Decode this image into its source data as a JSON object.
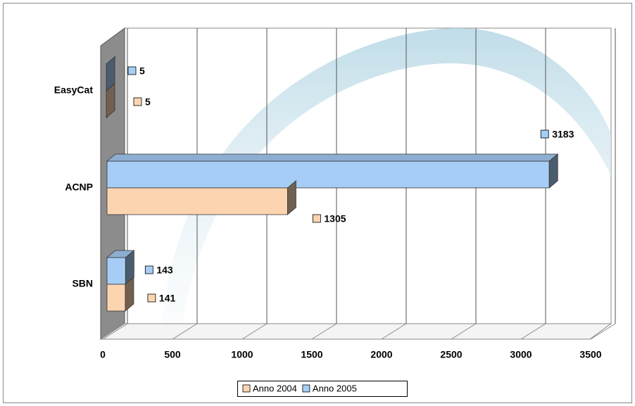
{
  "chart_data": {
    "type": "bar3d_horizontal",
    "categories": [
      "EasyCat",
      "ACNP",
      "SBN"
    ],
    "series": [
      {
        "name": "Anno 2004",
        "color": "#fcd5b0",
        "values": [
          5,
          1305,
          141
        ]
      },
      {
        "name": "Anno 2005",
        "color": "#a6cdf5",
        "values": [
          5,
          3183,
          143
        ]
      }
    ],
    "xlim": [
      0,
      3500
    ],
    "xticks": [
      0,
      500,
      1000,
      1500,
      2000,
      2500,
      3000,
      3500
    ],
    "grid": true,
    "legend": "bottom"
  }
}
